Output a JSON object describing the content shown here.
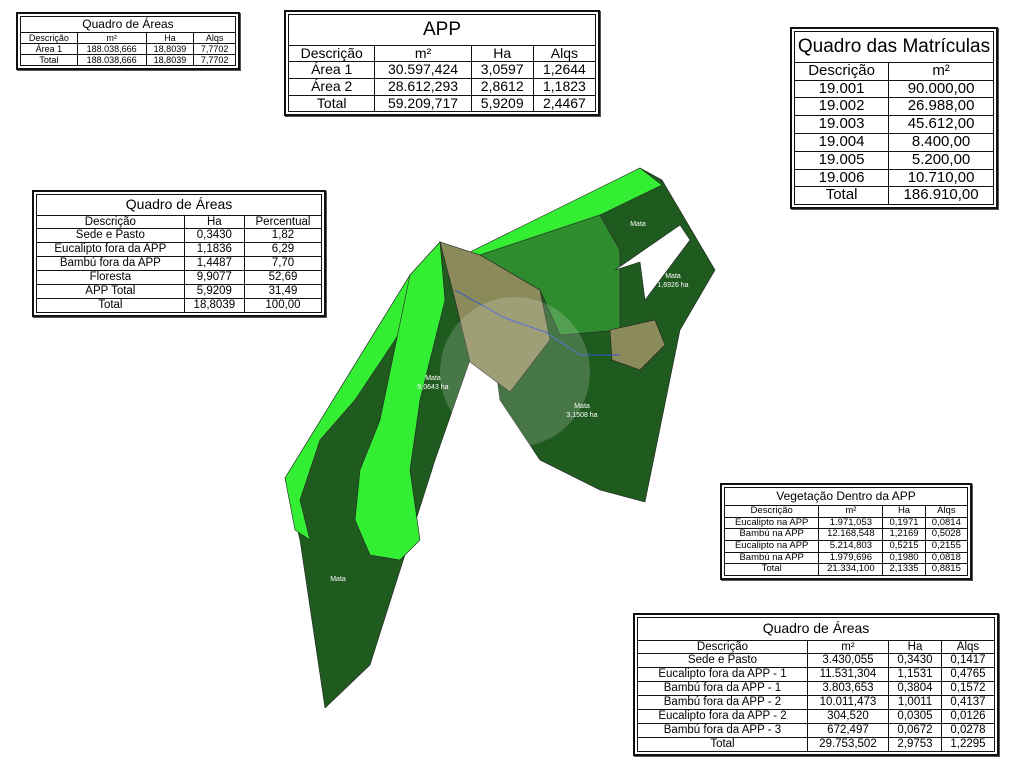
{
  "tables": [
    {
      "title": "Quadro de Áreas",
      "header": [
        "Descrição",
        "m²",
        "Ha",
        "Alqs"
      ],
      "rows": [
        [
          "Área 1",
          "188.038,666",
          "18,8039",
          "7,7702"
        ],
        [
          "Total",
          "188.038,666",
          "18,8039",
          "7,7702"
        ]
      ]
    },
    {
      "title": "APP",
      "header": [
        "Descrição",
        "m²",
        "Ha",
        "Alqs"
      ],
      "rows": [
        [
          "Área 1",
          "30.597,424",
          "3,0597",
          "1,2644"
        ],
        [
          "Área 2",
          "28.612,293",
          "2,8612",
          "1,1823"
        ],
        [
          "Total",
          "59.209,717",
          "5,9209",
          "2,4467"
        ]
      ]
    },
    {
      "title": "Quadro das Matrículas",
      "header": [
        "Descrição",
        "m²"
      ],
      "rows": [
        [
          "19.001",
          "90.000,00"
        ],
        [
          "19.002",
          "26.988,00"
        ],
        [
          "19.003",
          "45.612,00"
        ],
        [
          "19.004",
          "8.400,00"
        ],
        [
          "19.005",
          "5.200,00"
        ],
        [
          "19.006",
          "10.710,00"
        ],
        [
          "Total",
          "186.910,00"
        ]
      ]
    },
    {
      "title": "Quadro de Áreas",
      "header": [
        "Descrição",
        "Ha",
        "Percentual"
      ],
      "rows": [
        [
          "Sede e Pasto",
          "0,3430",
          "1,82"
        ],
        [
          "Eucalipto fora da APP",
          "1,1836",
          "6,29"
        ],
        [
          "Bambú fora da APP",
          "1,4487",
          "7,70"
        ],
        [
          "Floresta",
          "9,9077",
          "52,69"
        ],
        [
          "APP Total",
          "5,9209",
          "31,49"
        ],
        [
          "Total",
          "18,8039",
          "100,00"
        ]
      ]
    },
    {
      "title": "Vegetação Dentro da APP",
      "header": [
        "Descrição",
        "m²",
        "Ha",
        "Alqs"
      ],
      "rows": [
        [
          "Eucalipto na APP",
          "1.971,053",
          "0,1971",
          "0,0814"
        ],
        [
          "Bambú na APP",
          "12.168,548",
          "1,2169",
          "0,5028"
        ],
        [
          "Eucalipto na APP",
          "5.214,803",
          "0,5215",
          "0,2155"
        ],
        [
          "Bambú na APP",
          "1.979,696",
          "0,1980",
          "0,0818"
        ],
        [
          "Total",
          "21.334,100",
          "2,1335",
          "0,8815"
        ]
      ]
    },
    {
      "title": "Quadro de Áreas",
      "header": [
        "Descrição",
        "m²",
        "Ha",
        "Alqs"
      ],
      "rows": [
        [
          "Sede e Pasto",
          "3.430,055",
          "0,3430",
          "0,1417"
        ],
        [
          "Eucalipto fora da APP - 1",
          "11.531,304",
          "1,1531",
          "0,4765"
        ],
        [
          "Bambú fora da APP - 1",
          "3.803,653",
          "0,3804",
          "0,1572"
        ],
        [
          "Bambú fora da APP - 2",
          "10.011,473",
          "1,0011",
          "0,4137"
        ],
        [
          "Eucalipto fora da APP - 2",
          "304,520",
          "0,0305",
          "0,0126"
        ],
        [
          "Bambú fora da APP - 3",
          "672,497",
          "0,0672",
          "0,0278"
        ],
        [
          "Total",
          "29.753,502",
          "2,9753",
          "1,2295"
        ]
      ]
    }
  ],
  "map_labels": [
    {
      "name": "Mata"
    },
    {
      "name": "Mata",
      "area": "1,6926 ha"
    },
    {
      "name": "Mata",
      "area": "5,0643 ha"
    },
    {
      "name": "Mata",
      "area": "3,1508 ha"
    },
    {
      "name": "Mata"
    }
  ]
}
